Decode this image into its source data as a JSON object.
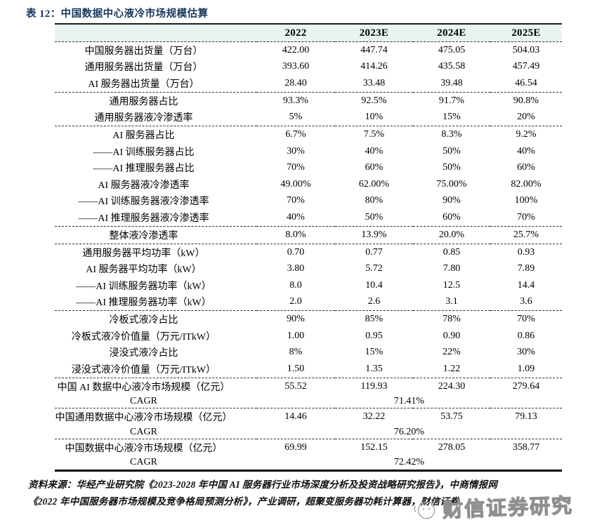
{
  "title": "表 12：中国数据中心液冷市场规模估算",
  "table": {
    "col_headers": [
      "",
      "2022",
      "2023E",
      "2024E",
      "2025E"
    ],
    "sections": [
      {
        "rows": [
          {
            "label": "中国服务器出货量（万台）",
            "values": [
              "422.00",
              "447.74",
              "475.05",
              "504.03"
            ]
          },
          {
            "label": "通用服务器出货量（万台）",
            "values": [
              "393.60",
              "414.26",
              "435.58",
              "457.49"
            ]
          },
          {
            "label": "AI 服务器出货量（万台）",
            "values": [
              "28.40",
              "33.48",
              "39.48",
              "46.54"
            ]
          }
        ]
      },
      {
        "rows": [
          {
            "label": "通用服务器占比",
            "values": [
              "93.3%",
              "92.5%",
              "91.7%",
              "90.8%"
            ]
          },
          {
            "label": "通用服务器液冷渗透率",
            "values": [
              "5%",
              "10%",
              "15%",
              "20%"
            ]
          }
        ]
      },
      {
        "rows": [
          {
            "label": "AI 服务器占比",
            "values": [
              "6.7%",
              "7.5%",
              "8.3%",
              "9.2%"
            ]
          },
          {
            "label": "——AI 训练服务器占比",
            "values": [
              "30%",
              "40%",
              "50%",
              "40%"
            ]
          },
          {
            "label": "——AI 推理服务器占比",
            "values": [
              "70%",
              "60%",
              "50%",
              "60%"
            ]
          },
          {
            "label": "AI 服务器液冷渗透率",
            "values": [
              "49.00%",
              "62.00%",
              "75.00%",
              "82.00%"
            ]
          },
          {
            "label": "——AI 训练服务器液冷渗透率",
            "values": [
              "70%",
              "80%",
              "90%",
              "100%"
            ]
          },
          {
            "label": "——AI 推理服务器液冷渗透率",
            "values": [
              "40%",
              "50%",
              "60%",
              "70%"
            ]
          }
        ]
      },
      {
        "rows": [
          {
            "label": "整体液冷渗透率",
            "values": [
              "8.0%",
              "13.9%",
              "20.0%",
              "25.7%"
            ]
          }
        ]
      },
      {
        "rows": [
          {
            "label": "通用服务器平均功率（kW）",
            "values": [
              "0.70",
              "0.77",
              "0.85",
              "0.93"
            ]
          },
          {
            "label": "AI 服务器平均功率（kW）",
            "values": [
              "3.80",
              "5.72",
              "7.80",
              "7.89"
            ]
          },
          {
            "label": "——AI 训练服务器功率（kW）",
            "values": [
              "8.0",
              "10.4",
              "12.5",
              "14.4"
            ]
          },
          {
            "label": "——AI 推理服务器功率（kW）",
            "values": [
              "2.0",
              "2.6",
              "3.1",
              "3.6"
            ]
          }
        ]
      },
      {
        "rows": [
          {
            "label": "冷板式液冷占比",
            "values": [
              "90%",
              "85%",
              "78%",
              "70%"
            ]
          },
          {
            "label": "冷板式液冷价值量（万元/ITkW）",
            "values": [
              "1.00",
              "0.95",
              "0.90",
              "0.86"
            ]
          },
          {
            "label": "浸没式液冷占比",
            "values": [
              "8%",
              "15%",
              "22%",
              "30%"
            ]
          },
          {
            "label": "浸没式液冷价值量（万元/ITkW）",
            "values": [
              "1.50",
              "1.35",
              "1.22",
              "1.09"
            ]
          }
        ]
      },
      {
        "rows": [
          {
            "label": "中国 AI 数据中心液冷市场规模（亿元）",
            "values": [
              "55.52",
              "119.93",
              "224.30",
              "279.64"
            ]
          },
          {
            "label": "CAGR",
            "span_value": "71.41%"
          }
        ]
      },
      {
        "rows": [
          {
            "label": "中国通用数据中心液冷市场规模（亿元）",
            "values": [
              "14.46",
              "32.22",
              "53.75",
              "79.13"
            ]
          },
          {
            "label": "CAGR",
            "span_value": "76.20%"
          }
        ]
      },
      {
        "rows": [
          {
            "label": "中国数据中心液冷市场规模（亿元）",
            "values": [
              "69.99",
              "152.15",
              "278.05",
              "358.77"
            ]
          },
          {
            "label": "CAGR",
            "span_value": "72.42%"
          }
        ]
      }
    ]
  },
  "footer": {
    "source_line1": "资料来源：华经产业研究院《2023-2028 年中国 AI 服务器行业市场深度分析及投资战略研究报告》，中商情报网",
    "source_line2": "《2022 年中国服务器市场规模及竞争格局预测分析》，产业调研，超聚变服务器功耗计算器，财信证券"
  },
  "watermark": {
    "text": "财信证券研究"
  },
  "colors": {
    "title": "#16365d",
    "header_bg": "#e9f4f1",
    "text": "#000000",
    "watermark": "#8f8f8f"
  }
}
